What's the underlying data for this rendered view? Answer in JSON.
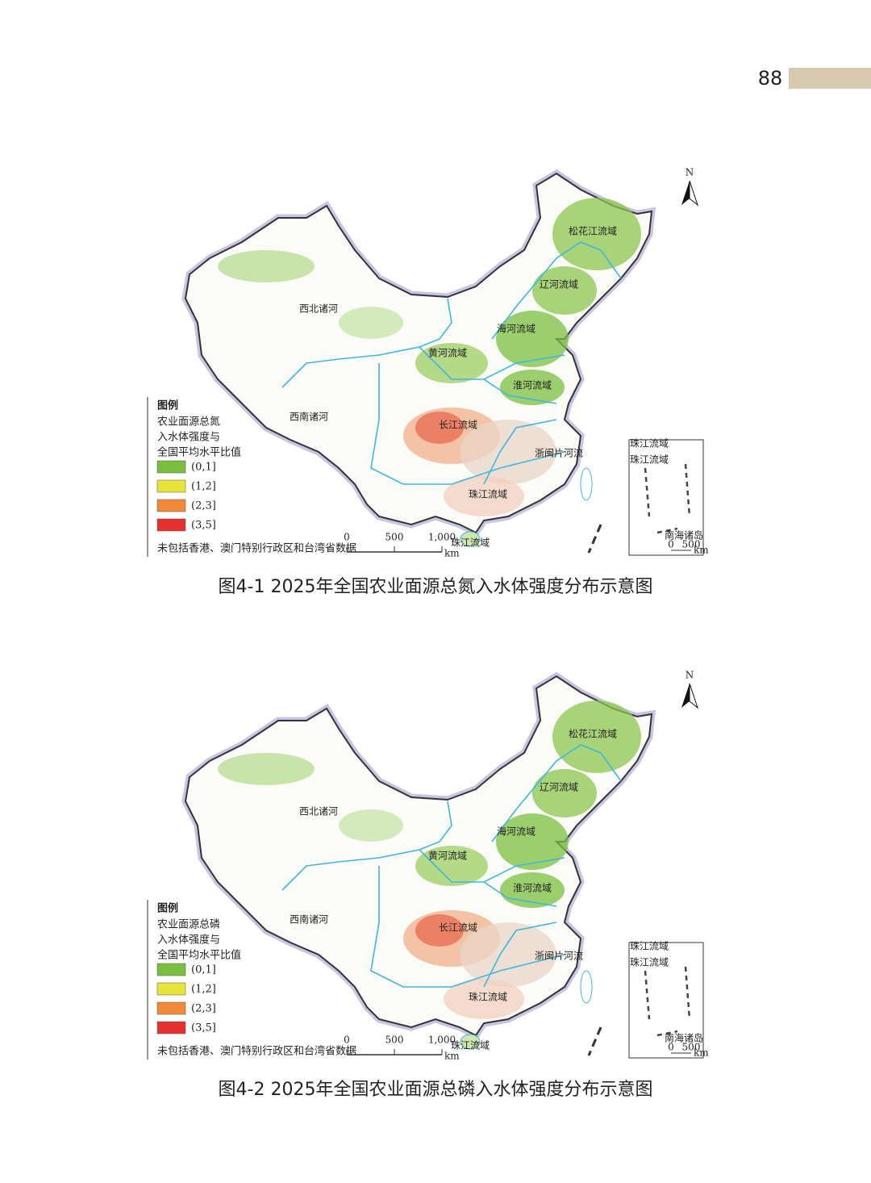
{
  "page_number": "88",
  "legend_colors": [
    "#7bbf3e",
    "#e8e43c",
    "#f08a3a",
    "#e53030"
  ],
  "figures": [
    {
      "regions": [
        "松花江流域",
        "辽河流域",
        "西北诸河",
        "海河流域",
        "黄河流域",
        "淮河流域",
        "西南诸河",
        "长江流域",
        "浙闽片河流",
        "珠江流域",
        "珠江流域"
      ],
      "legend": {
        "title": "图例",
        "description": [
          "农业面源总氮",
          "入水体强度与",
          "全国平均水平比值"
        ],
        "items": [
          "(0,1]",
          "(1,2]",
          "(2,3]",
          "(3,5]"
        ]
      },
      "scale": {
        "ticks": [
          "0",
          "500",
          "1,000"
        ],
        "unit": "km"
      },
      "note": "未包括香港、澳门特别行政区和台湾省数据",
      "north": "N",
      "inset": {
        "labels": [
          "珠江流域",
          "珠江流域"
        ],
        "title": "南海诸岛",
        "ticks": [
          "0",
          "500"
        ],
        "unit": "km"
      },
      "caption": "图4-1  2025年全国农业面源总氮入水体强度分布示意图"
    },
    {
      "regions": [
        "松花江流域",
        "辽河流域",
        "西北诸河",
        "海河流域",
        "黄河流域",
        "淮河流域",
        "西南诸河",
        "长江流域",
        "浙闽片河流",
        "珠江流域",
        "珠江流域"
      ],
      "legend": {
        "title": "图例",
        "description": [
          "农业面源总磷",
          "入水体强度与",
          "全国平均水平比值"
        ],
        "items": [
          "(0,1]",
          "(1,2]",
          "(2,3]",
          "(3,5]"
        ]
      },
      "scale": {
        "ticks": [
          "0",
          "500",
          "1,000"
        ],
        "unit": "km"
      },
      "note": "未包括香港、澳门特别行政区和台湾省数据",
      "north": "N",
      "inset": {
        "labels": [
          "珠江流域",
          "珠江流域"
        ],
        "title": "南海诸岛",
        "ticks": [
          "0",
          "500"
        ],
        "unit": "km"
      },
      "caption": "图4-2  2025年全国农业面源总磷入水体强度分布示意图"
    }
  ]
}
